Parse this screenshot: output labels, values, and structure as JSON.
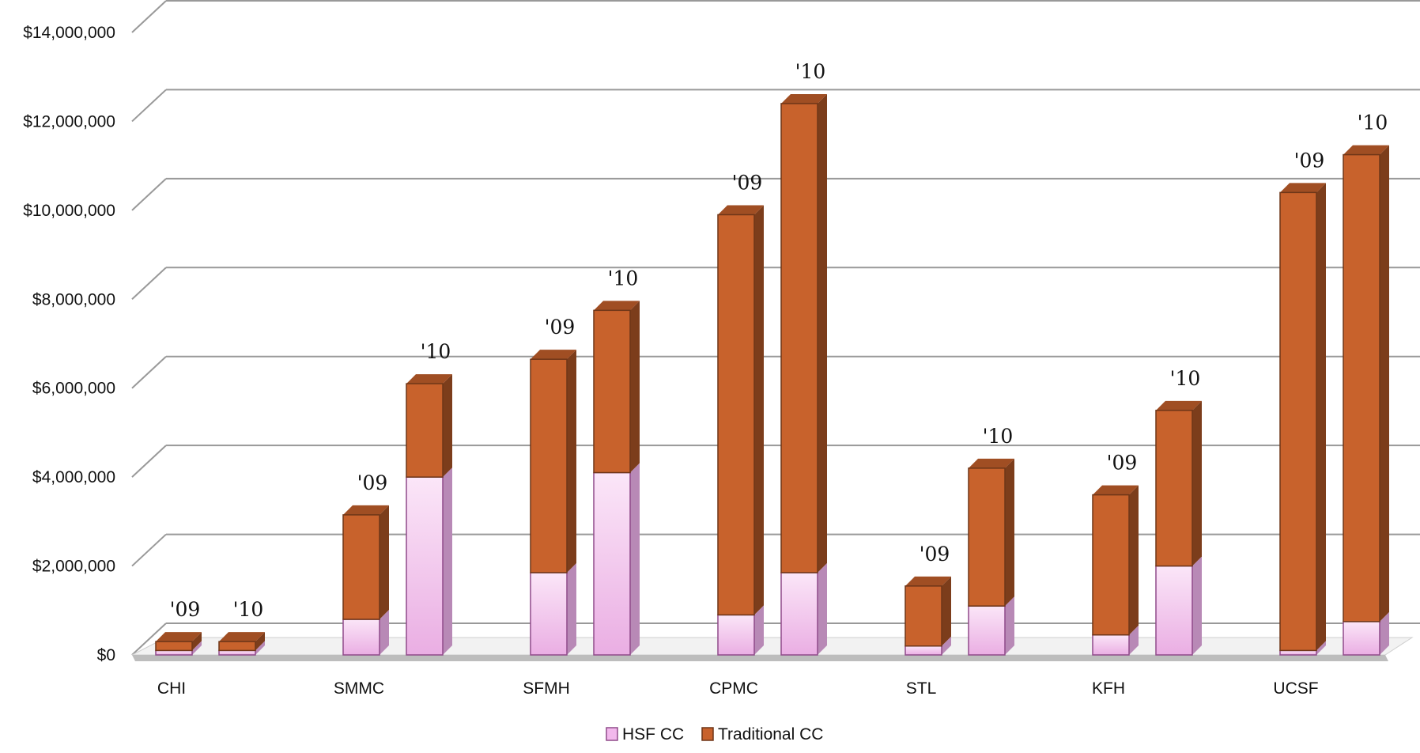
{
  "chart_data": {
    "type": "bar",
    "stacked": true,
    "three_d": true,
    "categories": [
      "CHI",
      "SMMC",
      "SFMH",
      "CPMC",
      "STL",
      "KFH",
      "UCSF"
    ],
    "bar_labels": [
      "'09",
      "'10"
    ],
    "series": [
      {
        "name": "HSF CC",
        "color": "#f2b8ec",
        "values": [
          [
            100000,
            100000
          ],
          [
            800000,
            4000000
          ],
          [
            1850000,
            4100000
          ],
          [
            900000,
            1850000
          ],
          [
            200000,
            1100000
          ],
          [
            450000,
            2000000
          ],
          [
            100000,
            750000
          ]
        ]
      },
      {
        "name": "Traditional CC",
        "color": "#c8622c",
        "values": [
          [
            200000,
            200000
          ],
          [
            2350000,
            2100000
          ],
          [
            4800000,
            3650000
          ],
          [
            9000000,
            10550000
          ],
          [
            1350000,
            3100000
          ],
          [
            3150000,
            3500000
          ],
          [
            10300000,
            10500000
          ]
        ]
      }
    ],
    "y_ticks": [
      "$0",
      "$2,000,000",
      "$4,000,000",
      "$6,000,000",
      "$8,000,000",
      "$10,000,000",
      "$12,000,000",
      "$14,000,000"
    ],
    "ylim": [
      0,
      14000000
    ],
    "grid": true,
    "legend_position": "bottom"
  }
}
